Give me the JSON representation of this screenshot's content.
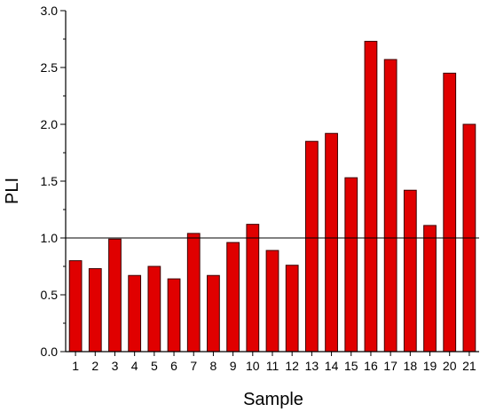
{
  "chart_data": {
    "type": "bar",
    "categories": [
      "1",
      "2",
      "3",
      "4",
      "5",
      "6",
      "7",
      "8",
      "9",
      "10",
      "11",
      "12",
      "13",
      "14",
      "15",
      "16",
      "17",
      "18",
      "19",
      "20",
      "21"
    ],
    "values": [
      0.8,
      0.73,
      0.99,
      0.67,
      0.75,
      0.64,
      1.04,
      0.67,
      0.96,
      1.12,
      0.89,
      0.76,
      1.85,
      1.92,
      1.53,
      2.73,
      2.57,
      1.42,
      1.11,
      2.45,
      2.0
    ],
    "xlabel": "Sample",
    "ylabel": "PLI",
    "ylim": [
      0,
      3.0
    ],
    "yticks": [
      "0.0",
      "0.5",
      "1.0",
      "1.5",
      "2.0",
      "2.5",
      "3.0"
    ],
    "reference_line": 1.0,
    "bar_color": "#e00000",
    "bar_edge_color": "#3a0000",
    "grid": false,
    "legend": "none"
  }
}
